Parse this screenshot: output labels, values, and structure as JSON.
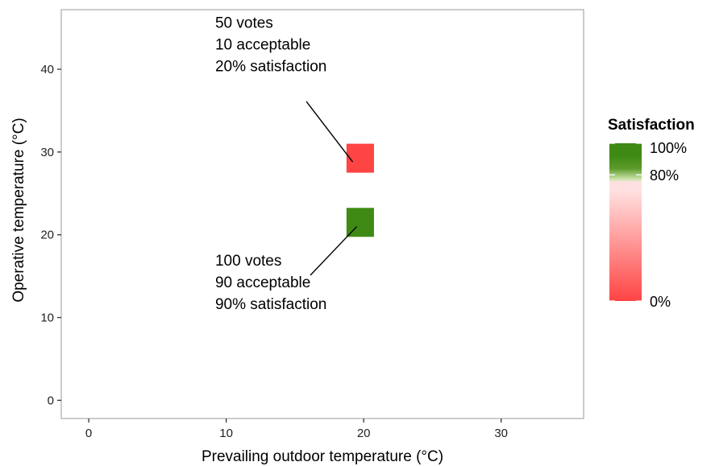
{
  "chart_data": {
    "type": "heatmap",
    "title": "",
    "xlabel": "Prevailing outdoor temperature (°C)",
    "ylabel": "Operative temperature (°C)",
    "xlim": [
      -2,
      36
    ],
    "ylim": [
      -2.2,
      47.2
    ],
    "x_ticks": [
      0,
      10,
      20,
      30
    ],
    "y_ticks": [
      0,
      10,
      20,
      30,
      40
    ],
    "grid": false,
    "cell_width": 2,
    "cell_height": 3.5,
    "cells": [
      {
        "x": 19.75,
        "y": 29.25,
        "satisfaction": 20,
        "color": "#ff4444"
      },
      {
        "x": 19.75,
        "y": 21.5,
        "satisfaction": 90,
        "color": "#3f8a15"
      }
    ],
    "annotations": [
      {
        "lines": [
          "50 votes",
          "10 acceptable",
          "20% satisfaction"
        ],
        "text_x": 9.2,
        "text_y": 45,
        "point_x": 19,
        "point_y": 29.8
      },
      {
        "lines": [
          "100 votes",
          "90 acceptable",
          "90% satisfaction"
        ],
        "text_x": 9.2,
        "text_y": 16.3,
        "point_x": 19.5,
        "point_y": 21.0
      }
    ],
    "legend": {
      "title": "Satisfaction",
      "position": "right",
      "min": 0,
      "max": 100,
      "labels": [
        {
          "value": 100,
          "text": "100%"
        },
        {
          "value": 80,
          "text": "80%"
        },
        {
          "value": 0,
          "text": "0%"
        }
      ],
      "colors": {
        "low": "#ff4444",
        "mid": "#ffe0e0",
        "threshold_light": "#cfe6b0",
        "threshold_dark": "#5c9a2a",
        "high": "#3f8a15"
      }
    },
    "colors": {
      "panel_border": "#9a9a9a",
      "axis_tick": "#333333"
    }
  }
}
